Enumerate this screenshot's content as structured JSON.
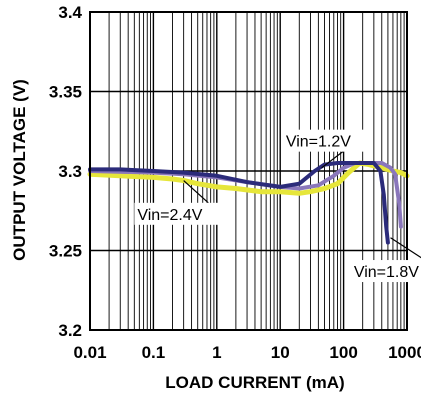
{
  "chart_data": {
    "type": "line",
    "xlabel": "LOAD CURRENT (mA)",
    "ylabel": "OUTPUT VOLTAGE (V)",
    "x_scale": "log",
    "xlim": [
      0.01,
      1000
    ],
    "ylim": [
      3.2,
      3.4
    ],
    "x_ticks": [
      0.01,
      0.1,
      1,
      10,
      100,
      1000
    ],
    "x_tick_labels": [
      "0.01",
      "0.1",
      "1",
      "10",
      "100",
      "1000"
    ],
    "y_ticks": [
      3.2,
      3.25,
      3.3,
      3.35,
      3.4
    ],
    "y_tick_labels": [
      "3.2",
      "3.25",
      "3.3",
      "3.35",
      "3.4"
    ],
    "grid": true,
    "series": [
      {
        "name": "Vin=1.2V",
        "color": "#2b2b7a",
        "x": [
          0.01,
          0.03,
          0.1,
          0.3,
          1,
          3,
          10,
          20,
          35,
          50,
          80,
          120,
          200,
          300,
          380,
          430,
          470,
          500
        ],
        "y": [
          3.301,
          3.301,
          3.3,
          3.299,
          3.297,
          3.293,
          3.29,
          3.292,
          3.3,
          3.304,
          3.305,
          3.305,
          3.305,
          3.305,
          3.3,
          3.285,
          3.265,
          3.255
        ]
      },
      {
        "name": "Vin=1.8V",
        "color": "#8a77bb",
        "x": [
          0.01,
          0.1,
          0.3,
          1,
          3,
          10,
          20,
          40,
          70,
          100,
          150,
          250,
          400,
          550,
          650,
          750,
          800
        ],
        "y": [
          3.3,
          3.299,
          3.298,
          3.296,
          3.293,
          3.29,
          3.289,
          3.291,
          3.297,
          3.302,
          3.305,
          3.305,
          3.305,
          3.302,
          3.298,
          3.28,
          3.265
        ]
      },
      {
        "name": "Vin=2.4V",
        "color": "#e6e63a",
        "x": [
          0.01,
          0.03,
          0.1,
          0.2,
          0.3,
          0.5,
          1,
          2,
          5,
          10,
          20,
          30,
          50,
          80,
          120,
          180,
          250,
          400,
          600,
          800,
          1000
        ],
        "y": [
          3.298,
          3.297,
          3.296,
          3.295,
          3.294,
          3.292,
          3.29,
          3.289,
          3.287,
          3.287,
          3.286,
          3.287,
          3.289,
          3.292,
          3.299,
          3.305,
          3.304,
          3.302,
          3.3,
          3.299,
          3.297
        ]
      }
    ],
    "annotations": [
      {
        "text": "Vin=1.2V",
        "x": 11,
        "y": 3.326,
        "pointer_to": {
          "x": 45,
          "y": 3.302
        }
      },
      {
        "text": "Vin=2.4V",
        "x": 0.05,
        "y": 3.28,
        "pointer_to": {
          "x": 0.3,
          "y": 3.294
        }
      },
      {
        "text": "Vin=1.8V",
        "x": 130,
        "y": 3.244,
        "pointer_to": {
          "x": 550,
          "y": 3.258
        }
      }
    ]
  }
}
